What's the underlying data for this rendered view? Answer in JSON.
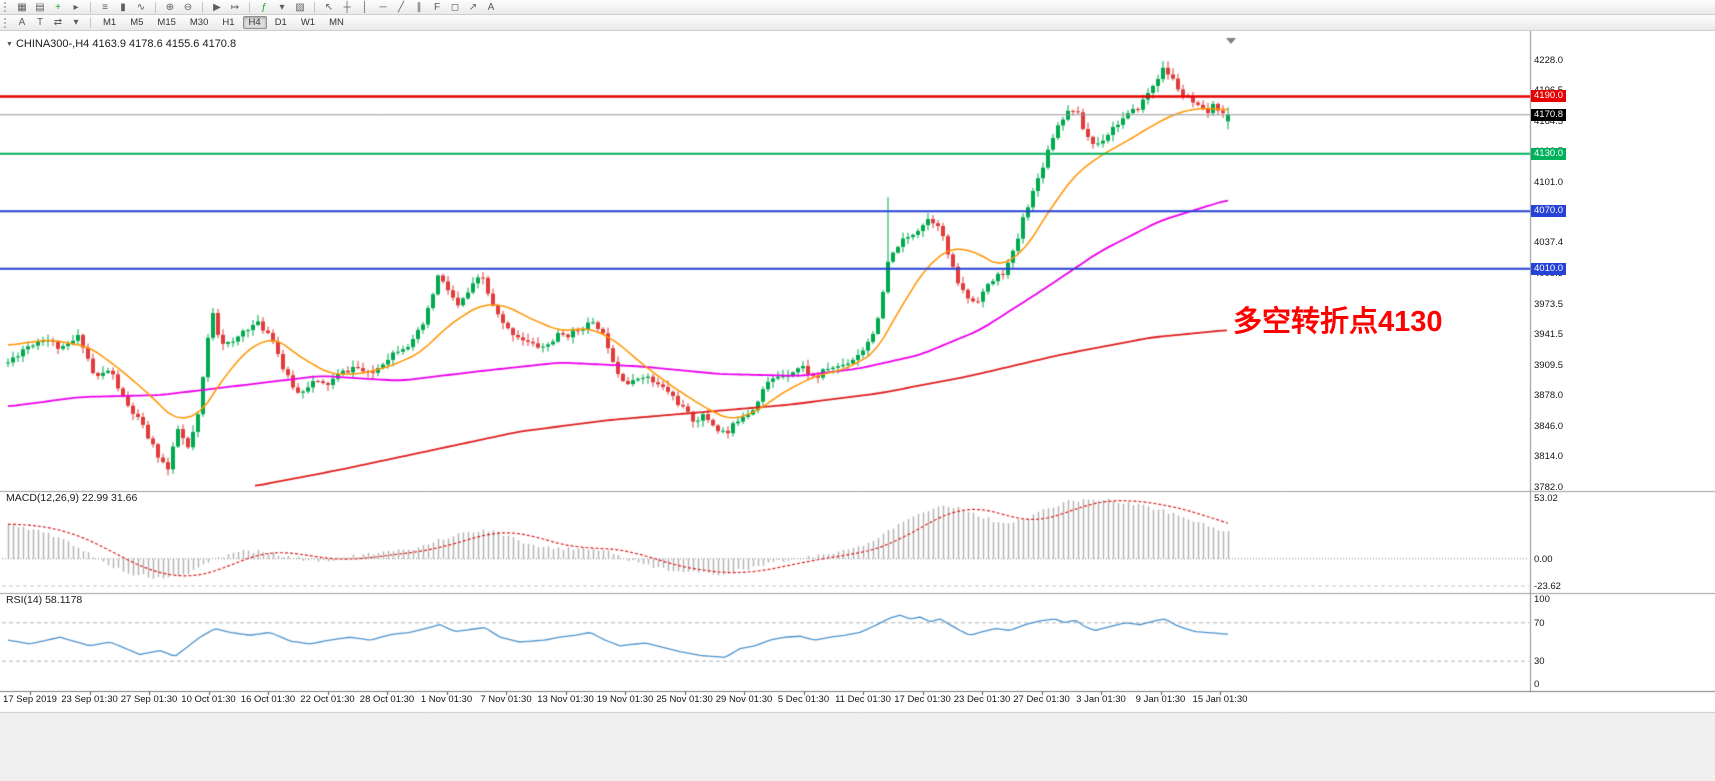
{
  "colors": {
    "up": "#00a94f",
    "down": "#e23b3b",
    "ma_fast": "#ff9500",
    "ma_mid": "#ee00ee",
    "ma_slow": "#e02020",
    "macd_hist": "#b4b4b4",
    "macd_signal": "#dd2222",
    "rsi_line": "#4f94cd",
    "bid_badge": "#000000"
  },
  "toolbar": {
    "row1": [
      {
        "name": "new-chart-icon",
        "glyph": "▦"
      },
      {
        "name": "profiles-icon",
        "glyph": "▤"
      },
      {
        "name": "new-order-icon",
        "glyph": "+",
        "color": "#1d9e2c"
      },
      {
        "name": "expert-advisors-icon",
        "glyph": "▸"
      },
      {
        "sep": true
      },
      {
        "name": "bars-mode-icon",
        "glyph": "≡"
      },
      {
        "name": "candles-mode-icon",
        "glyph": "▮"
      },
      {
        "name": "line-mode-icon",
        "glyph": "∿"
      },
      {
        "sep": true
      },
      {
        "name": "zoom-in-icon",
        "glyph": "⊕"
      },
      {
        "name": "zoom-out-icon",
        "glyph": "⊖"
      },
      {
        "sep": true
      },
      {
        "name": "auto-scroll-icon",
        "glyph": "▶"
      },
      {
        "name": "chart-shift-icon",
        "glyph": "↦"
      },
      {
        "sep": true
      },
      {
        "name": "indicators-icon",
        "glyph": "ƒ",
        "color": "#1d9e2c"
      },
      {
        "name": "periods-dropdown-icon",
        "glyph": "▾"
      },
      {
        "name": "templates-icon",
        "glyph": "▨"
      },
      {
        "sep": true
      },
      {
        "name": "cursor-icon",
        "glyph": "↖"
      },
      {
        "name": "crosshair-icon",
        "glyph": "┼"
      },
      {
        "name": "vertical-line-icon",
        "glyph": "│"
      },
      {
        "name": "horizontal-line-icon",
        "glyph": "─"
      },
      {
        "name": "trendline-icon",
        "glyph": "╱"
      },
      {
        "name": "equidistant-channel-icon",
        "glyph": "∥"
      },
      {
        "name": "fibonacci-icon",
        "glyph": "F"
      },
      {
        "name": "shapes-icon",
        "glyph": "◻"
      },
      {
        "name": "arrows-icon",
        "glyph": "↗"
      },
      {
        "name": "text-icon",
        "glyph": "A"
      }
    ],
    "row2": [
      {
        "name": "font-tool-icon",
        "glyph": "A"
      },
      {
        "name": "text-label-tool-icon",
        "glyph": "T"
      },
      {
        "name": "line-styles-icon",
        "glyph": "⇄"
      },
      {
        "name": "line-styles-dropdown-icon",
        "glyph": "▾"
      }
    ],
    "timeframes": [
      "M1",
      "M5",
      "M15",
      "M30",
      "H1",
      "H4",
      "D1",
      "W1",
      "MN"
    ],
    "active_timeframe": "H4"
  },
  "chart": {
    "collapse_glyph": "▼",
    "title": "CHINA300-,H4 4163.9 4178.6 4155.6 4170.8",
    "symbol": "CHINA300-",
    "period": "H4",
    "ohlc": {
      "open": "4163.9",
      "high": "4178.6",
      "low": "4155.6",
      "close": "4170.8"
    },
    "annotation": {
      "text": "多空转折点4130",
      "color": "#ff0000"
    },
    "levels": [
      {
        "label": "4190.0",
        "price": 4190.0,
        "color": "#e80000"
      },
      {
        "label": "4130.0",
        "price": 4130.0,
        "color": "#00b15c"
      },
      {
        "label": "4070.0",
        "price": 4070.0,
        "color": "#2742d6"
      },
      {
        "label": "4010.0",
        "price": 4010.0,
        "color": "#2742d6"
      }
    ],
    "bid": {
      "label": "4170.8",
      "price": 4170.8
    },
    "y_ticks": [
      {
        "label": "4228.0",
        "price": 4228.0
      },
      {
        "label": "4196.5",
        "price": 4196.5
      },
      {
        "label": "4164.5",
        "price": 4164.5
      },
      {
        "label": "4132.7",
        "price": 4132.7
      },
      {
        "label": "4101.0",
        "price": 4101.0
      },
      {
        "label": "4069.2",
        "price": 4069.2
      },
      {
        "label": "4037.4",
        "price": 4037.4
      },
      {
        "label": "4005.5",
        "price": 4005.5
      },
      {
        "label": "3973.5",
        "price": 3973.5
      },
      {
        "label": "3941.5",
        "price": 3941.5
      },
      {
        "label": "3909.5",
        "price": 3909.5
      },
      {
        "label": "3878.0",
        "price": 3878.0
      },
      {
        "label": "3846.0",
        "price": 3846.0
      },
      {
        "label": "3814.0",
        "price": 3814.0
      },
      {
        "label": "3782.0",
        "price": 3782.0
      }
    ]
  },
  "macd": {
    "label": "MACD(12,26,9) 22.99 31.66",
    "ticks": [
      {
        "label": "53.02",
        "value": 53.02
      },
      {
        "label": "0.00",
        "value": 0
      },
      {
        "label": "-23.62",
        "value": -23.62
      }
    ]
  },
  "rsi": {
    "label": "RSI(14) 58.1178",
    "ticks": [
      {
        "label": "100",
        "value": 100
      },
      {
        "label": "70",
        "value": 70
      },
      {
        "label": "30",
        "value": 30
      },
      {
        "label": "0",
        "value": 0
      }
    ],
    "levels": [
      70,
      30
    ]
  },
  "chart_data": {
    "type": "candlestick",
    "symbol": "CHINA300-",
    "timeframe": "H4",
    "title": "CHINA300-,H4 4163.9 4178.6 4155.6 4170.8",
    "price_axis": {
      "top_tick": 4228.0,
      "bottom_tick": 3782.0
    },
    "macd_axis": {
      "max": 53.02,
      "min": -23.62,
      "current_main": 22.99,
      "current_signal": 31.66
    },
    "rsi_axis": {
      "max": 100,
      "min": 0,
      "levels": [
        70,
        30
      ],
      "current": 58.1178
    },
    "horizontal_levels": [
      4190.0,
      4130.0,
      4070.0,
      4010.0
    ],
    "last_candle": {
      "open": 4163.9,
      "high": 4178.6,
      "low": 4155.6,
      "close": 4170.8
    },
    "seed_candles": 11,
    "seed_macd": 5,
    "wick_spikes": [
      [
        890,
        4085
      ]
    ],
    "x_labels": [
      "17 Sep 2019",
      "23 Sep 01:30",
      "27 Sep 01:30",
      "10 Oct 01:30",
      "16 Oct 01:30",
      "22 Oct 01:30",
      "28 Oct 01:30",
      "1 Nov 01:30",
      "7 Nov 01:30",
      "13 Nov 01:30",
      "19 Nov 01:30",
      "25 Nov 01:30",
      "29 Nov 01:30",
      "5 Dec 01:30",
      "11 Dec 01:30",
      "17 Dec 01:30",
      "23 Dec 01:30",
      "27 Dec 01:30",
      "3 Jan 01:30",
      "9 Jan 01:30",
      "15 Jan 01:30"
    ],
    "price_path": [
      [
        8,
        3912
      ],
      [
        25,
        3928
      ],
      [
        45,
        3938
      ],
      [
        62,
        3925
      ],
      [
        80,
        3940
      ],
      [
        95,
        3895
      ],
      [
        110,
        3905
      ],
      [
        125,
        3870
      ],
      [
        140,
        3850
      ],
      [
        155,
        3820
      ],
      [
        168,
        3800
      ],
      [
        178,
        3842
      ],
      [
        188,
        3822
      ],
      [
        198,
        3855
      ],
      [
        206,
        3920
      ],
      [
        212,
        3970
      ],
      [
        220,
        3935
      ],
      [
        232,
        3930
      ],
      [
        245,
        3948
      ],
      [
        258,
        3952
      ],
      [
        272,
        3940
      ],
      [
        285,
        3900
      ],
      [
        298,
        3880
      ],
      [
        312,
        3892
      ],
      [
        326,
        3888
      ],
      [
        340,
        3900
      ],
      [
        355,
        3908
      ],
      [
        370,
        3898
      ],
      [
        385,
        3915
      ],
      [
        400,
        3928
      ],
      [
        412,
        3932
      ],
      [
        425,
        3955
      ],
      [
        438,
        4002
      ],
      [
        448,
        3988
      ],
      [
        458,
        3970
      ],
      [
        470,
        3988
      ],
      [
        482,
        4003
      ],
      [
        492,
        3972
      ],
      [
        505,
        3948
      ],
      [
        518,
        3940
      ],
      [
        532,
        3930
      ],
      [
        545,
        3928
      ],
      [
        558,
        3940
      ],
      [
        572,
        3942
      ],
      [
        586,
        3952
      ],
      [
        598,
        3950
      ],
      [
        608,
        3930
      ],
      [
        618,
        3902
      ],
      [
        630,
        3888
      ],
      [
        642,
        3900
      ],
      [
        655,
        3890
      ],
      [
        668,
        3882
      ],
      [
        680,
        3868
      ],
      [
        692,
        3852
      ],
      [
        705,
        3856
      ],
      [
        718,
        3842
      ],
      [
        728,
        3838
      ],
      [
        740,
        3856
      ],
      [
        752,
        3862
      ],
      [
        765,
        3888
      ],
      [
        778,
        3898
      ],
      [
        790,
        3902
      ],
      [
        802,
        3908
      ],
      [
        815,
        3895
      ],
      [
        828,
        3906
      ],
      [
        840,
        3908
      ],
      [
        852,
        3915
      ],
      [
        865,
        3928
      ],
      [
        878,
        3955
      ],
      [
        888,
        4015
      ],
      [
        898,
        4035
      ],
      [
        908,
        4042
      ],
      [
        918,
        4052
      ],
      [
        928,
        4062
      ],
      [
        938,
        4058
      ],
      [
        946,
        4032
      ],
      [
        955,
        4002
      ],
      [
        965,
        3982
      ],
      [
        975,
        3975
      ],
      [
        985,
        3988
      ],
      [
        995,
        4000
      ],
      [
        1005,
        4008
      ],
      [
        1015,
        4030
      ],
      [
        1025,
        4070
      ],
      [
        1035,
        4095
      ],
      [
        1045,
        4125
      ],
      [
        1055,
        4155
      ],
      [
        1065,
        4172
      ],
      [
        1075,
        4178
      ],
      [
        1085,
        4152
      ],
      [
        1095,
        4138
      ],
      [
        1105,
        4148
      ],
      [
        1115,
        4160
      ],
      [
        1125,
        4168
      ],
      [
        1135,
        4175
      ],
      [
        1145,
        4188
      ],
      [
        1155,
        4205
      ],
      [
        1162,
        4218
      ],
      [
        1168,
        4214
      ],
      [
        1175,
        4204
      ],
      [
        1182,
        4192
      ],
      [
        1190,
        4185
      ],
      [
        1198,
        4178
      ],
      [
        1206,
        4172
      ],
      [
        1214,
        4180
      ],
      [
        1222,
        4176
      ],
      [
        1228,
        4170.8
      ]
    ],
    "ma_fast_path": [
      [
        8,
        3930
      ],
      [
        50,
        3936
      ],
      [
        90,
        3928
      ],
      [
        120,
        3905
      ],
      [
        150,
        3878
      ],
      [
        175,
        3852
      ],
      [
        200,
        3858
      ],
      [
        225,
        3898
      ],
      [
        250,
        3928
      ],
      [
        275,
        3938
      ],
      [
        300,
        3918
      ],
      [
        330,
        3900
      ],
      [
        360,
        3900
      ],
      [
        390,
        3908
      ],
      [
        420,
        3922
      ],
      [
        450,
        3952
      ],
      [
        480,
        3972
      ],
      [
        505,
        3972
      ],
      [
        530,
        3958
      ],
      [
        560,
        3945
      ],
      [
        590,
        3948
      ],
      [
        615,
        3935
      ],
      [
        645,
        3908
      ],
      [
        675,
        3885
      ],
      [
        705,
        3865
      ],
      [
        730,
        3852
      ],
      [
        755,
        3860
      ],
      [
        785,
        3882
      ],
      [
        815,
        3898
      ],
      [
        845,
        3905
      ],
      [
        875,
        3922
      ],
      [
        900,
        3968
      ],
      [
        925,
        4010
      ],
      [
        950,
        4032
      ],
      [
        975,
        4028
      ],
      [
        1000,
        4012
      ],
      [
        1025,
        4030
      ],
      [
        1050,
        4072
      ],
      [
        1075,
        4108
      ],
      [
        1100,
        4128
      ],
      [
        1125,
        4142
      ],
      [
        1150,
        4158
      ],
      [
        1175,
        4172
      ],
      [
        1200,
        4178
      ],
      [
        1228,
        4176
      ]
    ],
    "ma_mid_path": [
      [
        8,
        3866
      ],
      [
        80,
        3876
      ],
      [
        160,
        3878
      ],
      [
        240,
        3888
      ],
      [
        320,
        3898
      ],
      [
        400,
        3893
      ],
      [
        480,
        3903
      ],
      [
        560,
        3912
      ],
      [
        640,
        3908
      ],
      [
        720,
        3900
      ],
      [
        800,
        3898
      ],
      [
        860,
        3906
      ],
      [
        920,
        3920
      ],
      [
        980,
        3946
      ],
      [
        1040,
        3986
      ],
      [
        1100,
        4028
      ],
      [
        1160,
        4060
      ],
      [
        1228,
        4082
      ]
    ],
    "ma_slow_path": [
      [
        255,
        3783
      ],
      [
        340,
        3800
      ],
      [
        430,
        3820
      ],
      [
        520,
        3840
      ],
      [
        610,
        3852
      ],
      [
        700,
        3860
      ],
      [
        790,
        3868
      ],
      [
        880,
        3880
      ],
      [
        970,
        3898
      ],
      [
        1060,
        3920
      ],
      [
        1150,
        3938
      ],
      [
        1228,
        3946
      ]
    ],
    "macd_path": [
      [
        8,
        30
      ],
      [
        40,
        24
      ],
      [
        70,
        14
      ],
      [
        100,
        -2
      ],
      [
        130,
        -13
      ],
      [
        160,
        -17
      ],
      [
        190,
        -12
      ],
      [
        215,
        0
      ],
      [
        240,
        7
      ],
      [
        265,
        6
      ],
      [
        290,
        1
      ],
      [
        320,
        -2
      ],
      [
        350,
        2
      ],
      [
        380,
        5
      ],
      [
        410,
        8
      ],
      [
        440,
        17
      ],
      [
        470,
        24
      ],
      [
        495,
        24
      ],
      [
        520,
        15
      ],
      [
        550,
        9
      ],
      [
        580,
        9
      ],
      [
        605,
        8
      ],
      [
        630,
        -2
      ],
      [
        660,
        -8
      ],
      [
        690,
        -12
      ],
      [
        720,
        -13
      ],
      [
        750,
        -8
      ],
      [
        780,
        -2
      ],
      [
        810,
        2
      ],
      [
        840,
        6
      ],
      [
        865,
        12
      ],
      [
        890,
        26
      ],
      [
        915,
        38
      ],
      [
        940,
        46
      ],
      [
        960,
        44
      ],
      [
        980,
        37
      ],
      [
        1000,
        31
      ],
      [
        1020,
        33
      ],
      [
        1045,
        43
      ],
      [
        1070,
        50
      ],
      [
        1095,
        52
      ],
      [
        1120,
        49
      ],
      [
        1145,
        46
      ],
      [
        1170,
        40
      ],
      [
        1195,
        32
      ],
      [
        1215,
        27
      ],
      [
        1228,
        23
      ]
    ],
    "rsi_path": [
      [
        8,
        52
      ],
      [
        30,
        48
      ],
      [
        60,
        55
      ],
      [
        90,
        46
      ],
      [
        110,
        50
      ],
      [
        140,
        37
      ],
      [
        160,
        41
      ],
      [
        175,
        35
      ],
      [
        200,
        55
      ],
      [
        215,
        64
      ],
      [
        230,
        60
      ],
      [
        250,
        57
      ],
      [
        270,
        60
      ],
      [
        290,
        51
      ],
      [
        310,
        48
      ],
      [
        330,
        52
      ],
      [
        350,
        55
      ],
      [
        370,
        52
      ],
      [
        392,
        58
      ],
      [
        410,
        60
      ],
      [
        425,
        64
      ],
      [
        440,
        68
      ],
      [
        455,
        61
      ],
      [
        470,
        63
      ],
      [
        485,
        65
      ],
      [
        500,
        55
      ],
      [
        520,
        50
      ],
      [
        545,
        52
      ],
      [
        560,
        55
      ],
      [
        575,
        57
      ],
      [
        590,
        60
      ],
      [
        605,
        52
      ],
      [
        620,
        46
      ],
      [
        645,
        49
      ],
      [
        665,
        44
      ],
      [
        680,
        40
      ],
      [
        700,
        36
      ],
      [
        725,
        34
      ],
      [
        740,
        43
      ],
      [
        755,
        46
      ],
      [
        770,
        52
      ],
      [
        785,
        55
      ],
      [
        800,
        56
      ],
      [
        815,
        52
      ],
      [
        830,
        55
      ],
      [
        845,
        57
      ],
      [
        860,
        60
      ],
      [
        875,
        67
      ],
      [
        890,
        75
      ],
      [
        900,
        78
      ],
      [
        910,
        74
      ],
      [
        920,
        76
      ],
      [
        930,
        71
      ],
      [
        940,
        74
      ],
      [
        950,
        68
      ],
      [
        960,
        62
      ],
      [
        970,
        57
      ],
      [
        980,
        60
      ],
      [
        995,
        64
      ],
      [
        1010,
        62
      ],
      [
        1025,
        68
      ],
      [
        1040,
        72
      ],
      [
        1055,
        74
      ],
      [
        1065,
        70
      ],
      [
        1075,
        73
      ],
      [
        1085,
        66
      ],
      [
        1095,
        62
      ],
      [
        1110,
        66
      ],
      [
        1125,
        70
      ],
      [
        1140,
        68
      ],
      [
        1155,
        72
      ],
      [
        1165,
        74
      ],
      [
        1175,
        68
      ],
      [
        1185,
        64
      ],
      [
        1195,
        61
      ],
      [
        1205,
        60
      ],
      [
        1218,
        59
      ],
      [
        1228,
        58.1
      ]
    ]
  }
}
